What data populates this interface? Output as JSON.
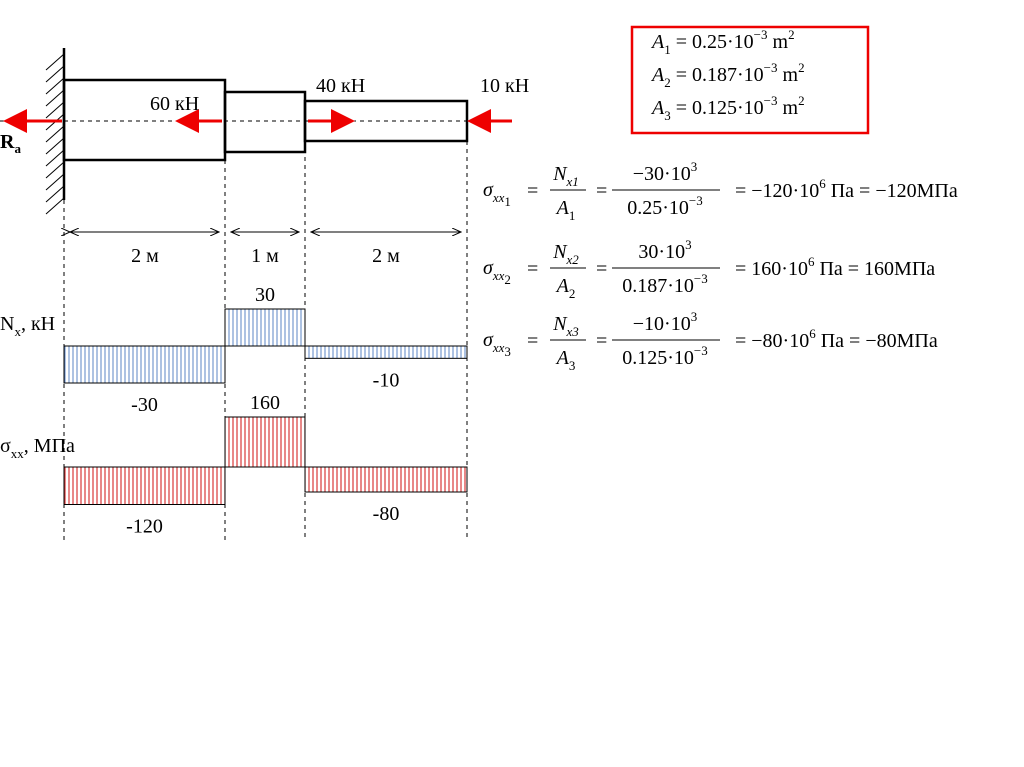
{
  "beam": {
    "reaction": {
      "symbol": "R",
      "sub": "a"
    },
    "forces": [
      "60 кН",
      "40 кН",
      "10 кН"
    ],
    "lengths": [
      "2 м",
      "1 м",
      "2 м"
    ]
  },
  "areas": [
    {
      "symbol": "A",
      "sub": "1",
      "value": " = 0.25·10",
      "exp": "−3",
      "unit": " m",
      "unit_exp": "2"
    },
    {
      "symbol": "A",
      "sub": "2",
      "value": " = 0.187·10",
      "exp": "−3",
      "unit": " m",
      "unit_exp": "2"
    },
    {
      "symbol": "A",
      "sub": "3",
      "value": " = 0.125·10",
      "exp": "−3",
      "unit": " m",
      "unit_exp": "2"
    }
  ],
  "stresses": [
    {
      "symbol": "σ",
      "sub": "xx",
      "idx": "1",
      "eq": "=",
      "num": {
        "symbol": "N",
        "sub": "x1"
      },
      "den": {
        "symbol": "A",
        "sub": "1"
      },
      "eq2": "=",
      "num2": "−30·10",
      "num2_exp": "3",
      "den2": "0.25·10",
      "den2_exp": "−3",
      "result": "= −120·10",
      "result_exp": "6",
      "result_tail": " Па = −120МПа"
    },
    {
      "symbol": "σ",
      "sub": "xx",
      "idx": "2",
      "eq": "=",
      "num": {
        "symbol": "N",
        "sub": "x2"
      },
      "den": {
        "symbol": "A",
        "sub": "2"
      },
      "eq2": "=",
      "num2": "30·10",
      "num2_exp": "3",
      "den2": "0.187·10",
      "den2_exp": "−3",
      "result": "= 160·10",
      "result_exp": "6",
      "result_tail": " Па  = 160МПа"
    },
    {
      "symbol": "σ",
      "sub": "xx",
      "idx": "3",
      "eq": "=",
      "num": {
        "symbol": "N",
        "sub": "x3"
      },
      "den": {
        "symbol": "A",
        "sub": "3"
      },
      "eq2": "=",
      "num2": "−10·10",
      "num2_exp": "3",
      "den2": "0.125·10",
      "den2_exp": "−3",
      "result": "= −80·10",
      "result_exp": "6",
      "result_tail": " Па  = −80МПа"
    }
  ],
  "nx_diagram": {
    "symbol": "N",
    "sub": "x",
    "unit": ", кН",
    "values": [
      -30,
      30,
      -10
    ]
  },
  "sigma_diagram": {
    "symbol": "σ",
    "sub": "xx",
    "unit": ", МПа",
    "values": [
      -120,
      160,
      -80
    ]
  }
}
